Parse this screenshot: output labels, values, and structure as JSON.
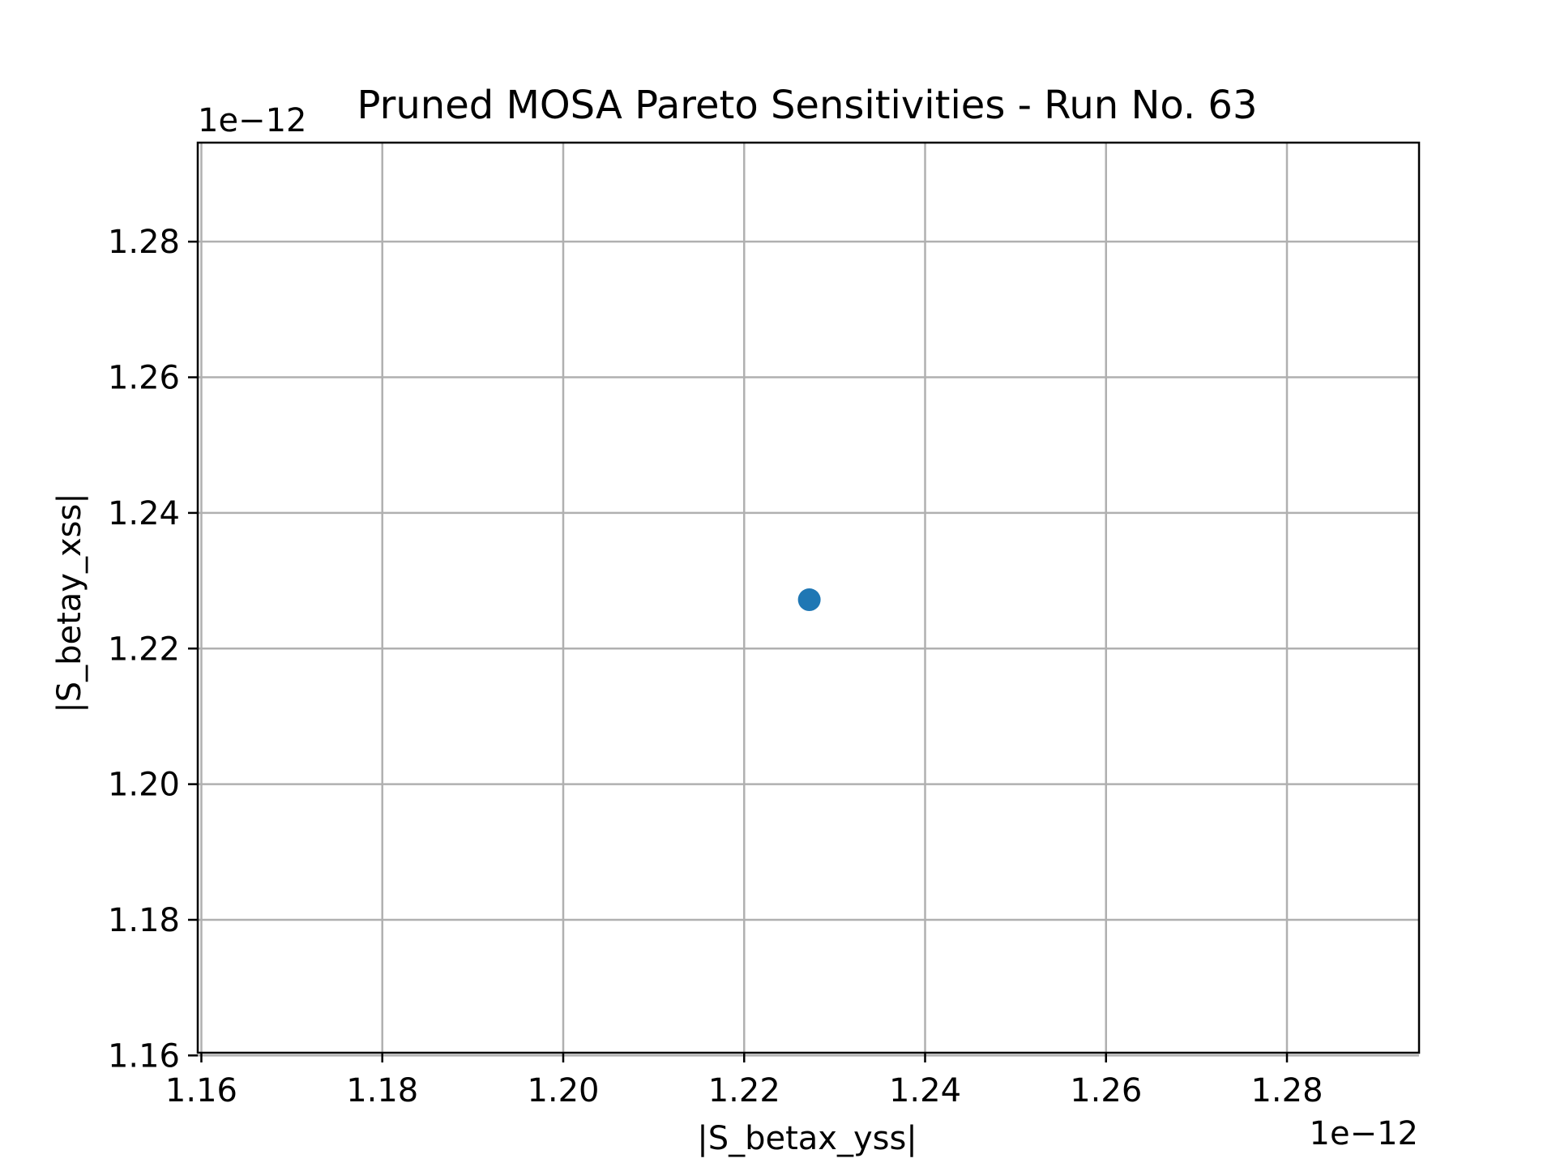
{
  "chart_data": {
    "type": "scatter",
    "title": "Pruned MOSA Pareto Sensitivities - Run No. 63",
    "xlabel": "|S_betax_yss|",
    "ylabel": "|S_betay_xss|",
    "x_offset_label": "1e−12",
    "y_offset_label": "1e−12",
    "xlim": [
      1.1596,
      1.2946
    ],
    "ylim": [
      1.1604,
      1.2946
    ],
    "x_ticks": [
      1.16,
      1.18,
      1.2,
      1.22,
      1.24,
      1.26,
      1.28
    ],
    "x_tick_labels": [
      "1.16",
      "1.18",
      "1.20",
      "1.22",
      "1.24",
      "1.26",
      "1.28"
    ],
    "y_ticks": [
      1.16,
      1.18,
      1.2,
      1.22,
      1.24,
      1.26,
      1.28
    ],
    "y_tick_labels": [
      "1.16",
      "1.18",
      "1.20",
      "1.22",
      "1.24",
      "1.26",
      "1.28"
    ],
    "grid": true,
    "series": [
      {
        "color": "#1f77b4",
        "x": [
          1.2272
        ],
        "y": [
          1.2272
        ]
      }
    ]
  }
}
